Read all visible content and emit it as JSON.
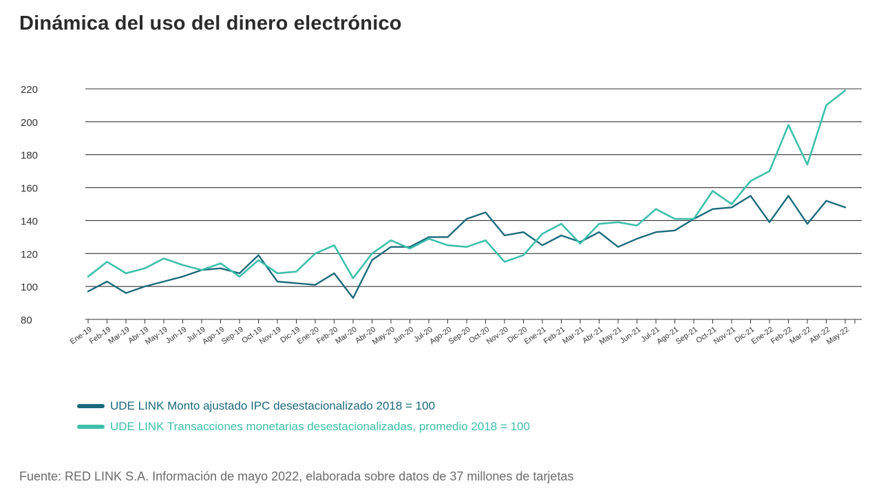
{
  "page": {
    "title": "Dinámica del uso del dinero electrónico",
    "source": "Fuente: RED LINK S.A. Información de mayo 2022, elaborada sobre datos de 37 millones de tarjetas"
  },
  "colors": {
    "series1": "#1a6a7c",
    "series2": "#3dbfaa",
    "grid": "#333333",
    "tick_text": "#333333"
  },
  "chart_data": {
    "type": "line",
    "title": "Dinámica del uso del dinero electrónico",
    "xlabel": "",
    "ylabel": "",
    "ylim": [
      80,
      220
    ],
    "yticks": [
      80,
      100,
      120,
      140,
      160,
      180,
      200,
      220
    ],
    "grid": true,
    "legend_position": "bottom-left",
    "categories": [
      "Ene-19",
      "Feb-19",
      "Mar-19",
      "Abr-19",
      "May-19",
      "Jun-19",
      "Jul-19",
      "Ago-19",
      "Sep-19",
      "Oct-19",
      "Nov-19",
      "Dic-19",
      "Ene-20",
      "Feb-20",
      "Mar-20",
      "Abr-20",
      "May-20",
      "Jun-20",
      "Jul-20",
      "Ago-20",
      "Sep-20",
      "Oct-20",
      "Nov-20",
      "Dic-20",
      "Ene-21",
      "Feb-21",
      "Mar-21",
      "Abr-21",
      "May-21",
      "Jun-21",
      "Jul-21",
      "Ago-21",
      "Sep-21",
      "Oct-21",
      "Nov-21",
      "Dic-21",
      "Ene-22",
      "Feb-22",
      "Mar-22",
      "Abr-22",
      "May-22"
    ],
    "series": [
      {
        "name": "UDE LINK Monto ajustado IPC desestacionalizado 2018 = 100",
        "color": "#1a6a7c",
        "values": [
          97,
          103,
          96,
          100,
          103,
          106,
          110,
          111,
          108,
          119,
          103,
          102,
          101,
          108,
          93,
          116,
          124,
          124,
          130,
          130,
          141,
          145,
          131,
          133,
          125,
          131,
          127,
          133,
          124,
          129,
          133,
          134,
          141,
          147,
          148,
          155,
          139,
          155,
          138,
          152,
          148
        ]
      },
      {
        "name": "UDE LINK Transacciones monetarias desestacionalizadas, promedio 2018 = 100",
        "color": "#3dbfaa",
        "values": [
          106,
          115,
          108,
          111,
          117,
          113,
          110,
          114,
          106,
          116,
          108,
          109,
          120,
          125,
          105,
          120,
          128,
          123,
          129,
          125,
          124,
          128,
          115,
          119,
          132,
          138,
          126,
          138,
          139,
          137,
          147,
          141,
          141,
          158,
          150,
          164,
          170,
          198,
          174,
          210,
          219
        ]
      }
    ]
  }
}
